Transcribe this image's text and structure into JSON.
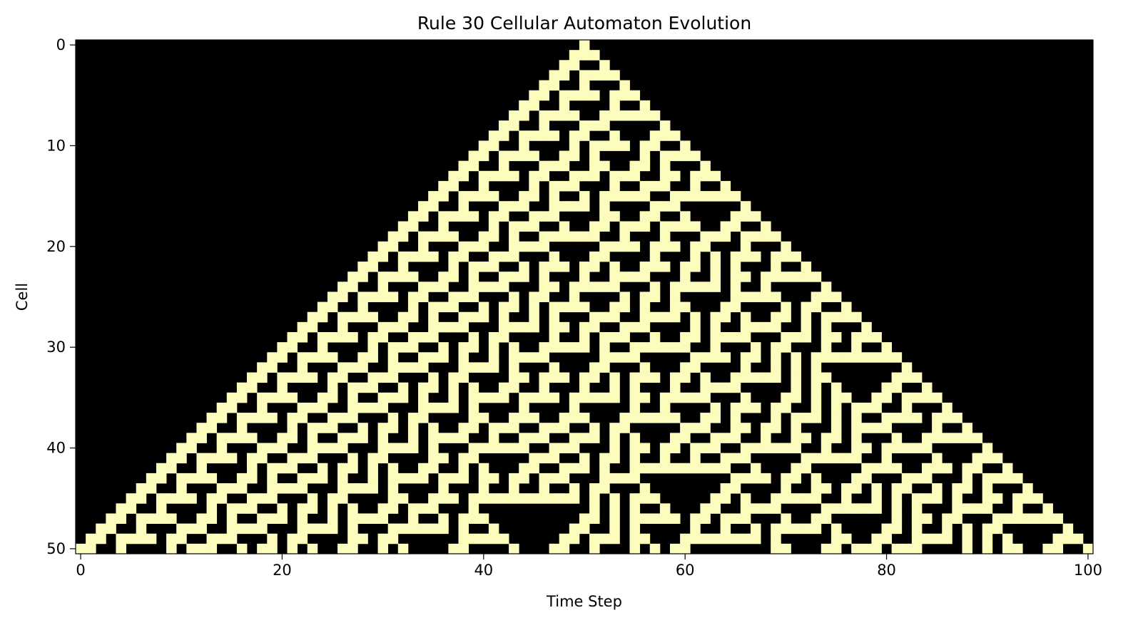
{
  "chart_data": {
    "type": "heatmap",
    "title": "Rule 30 Cellular Automaton Evolution",
    "xlabel": "Time Step",
    "ylabel": "Cell",
    "rule": 30,
    "width": 101,
    "steps": 51,
    "initial_state": "single live cell at position 50",
    "x_ticks": [
      0,
      20,
      40,
      60,
      80,
      100
    ],
    "y_ticks": [
      0,
      10,
      20,
      30,
      40,
      50
    ],
    "xlim": [
      -0.5,
      100.5
    ],
    "ylim": [
      50.5,
      -0.5
    ],
    "colors": {
      "dead": "#000000",
      "alive": "#fcfcbc",
      "text": "#000000"
    }
  }
}
